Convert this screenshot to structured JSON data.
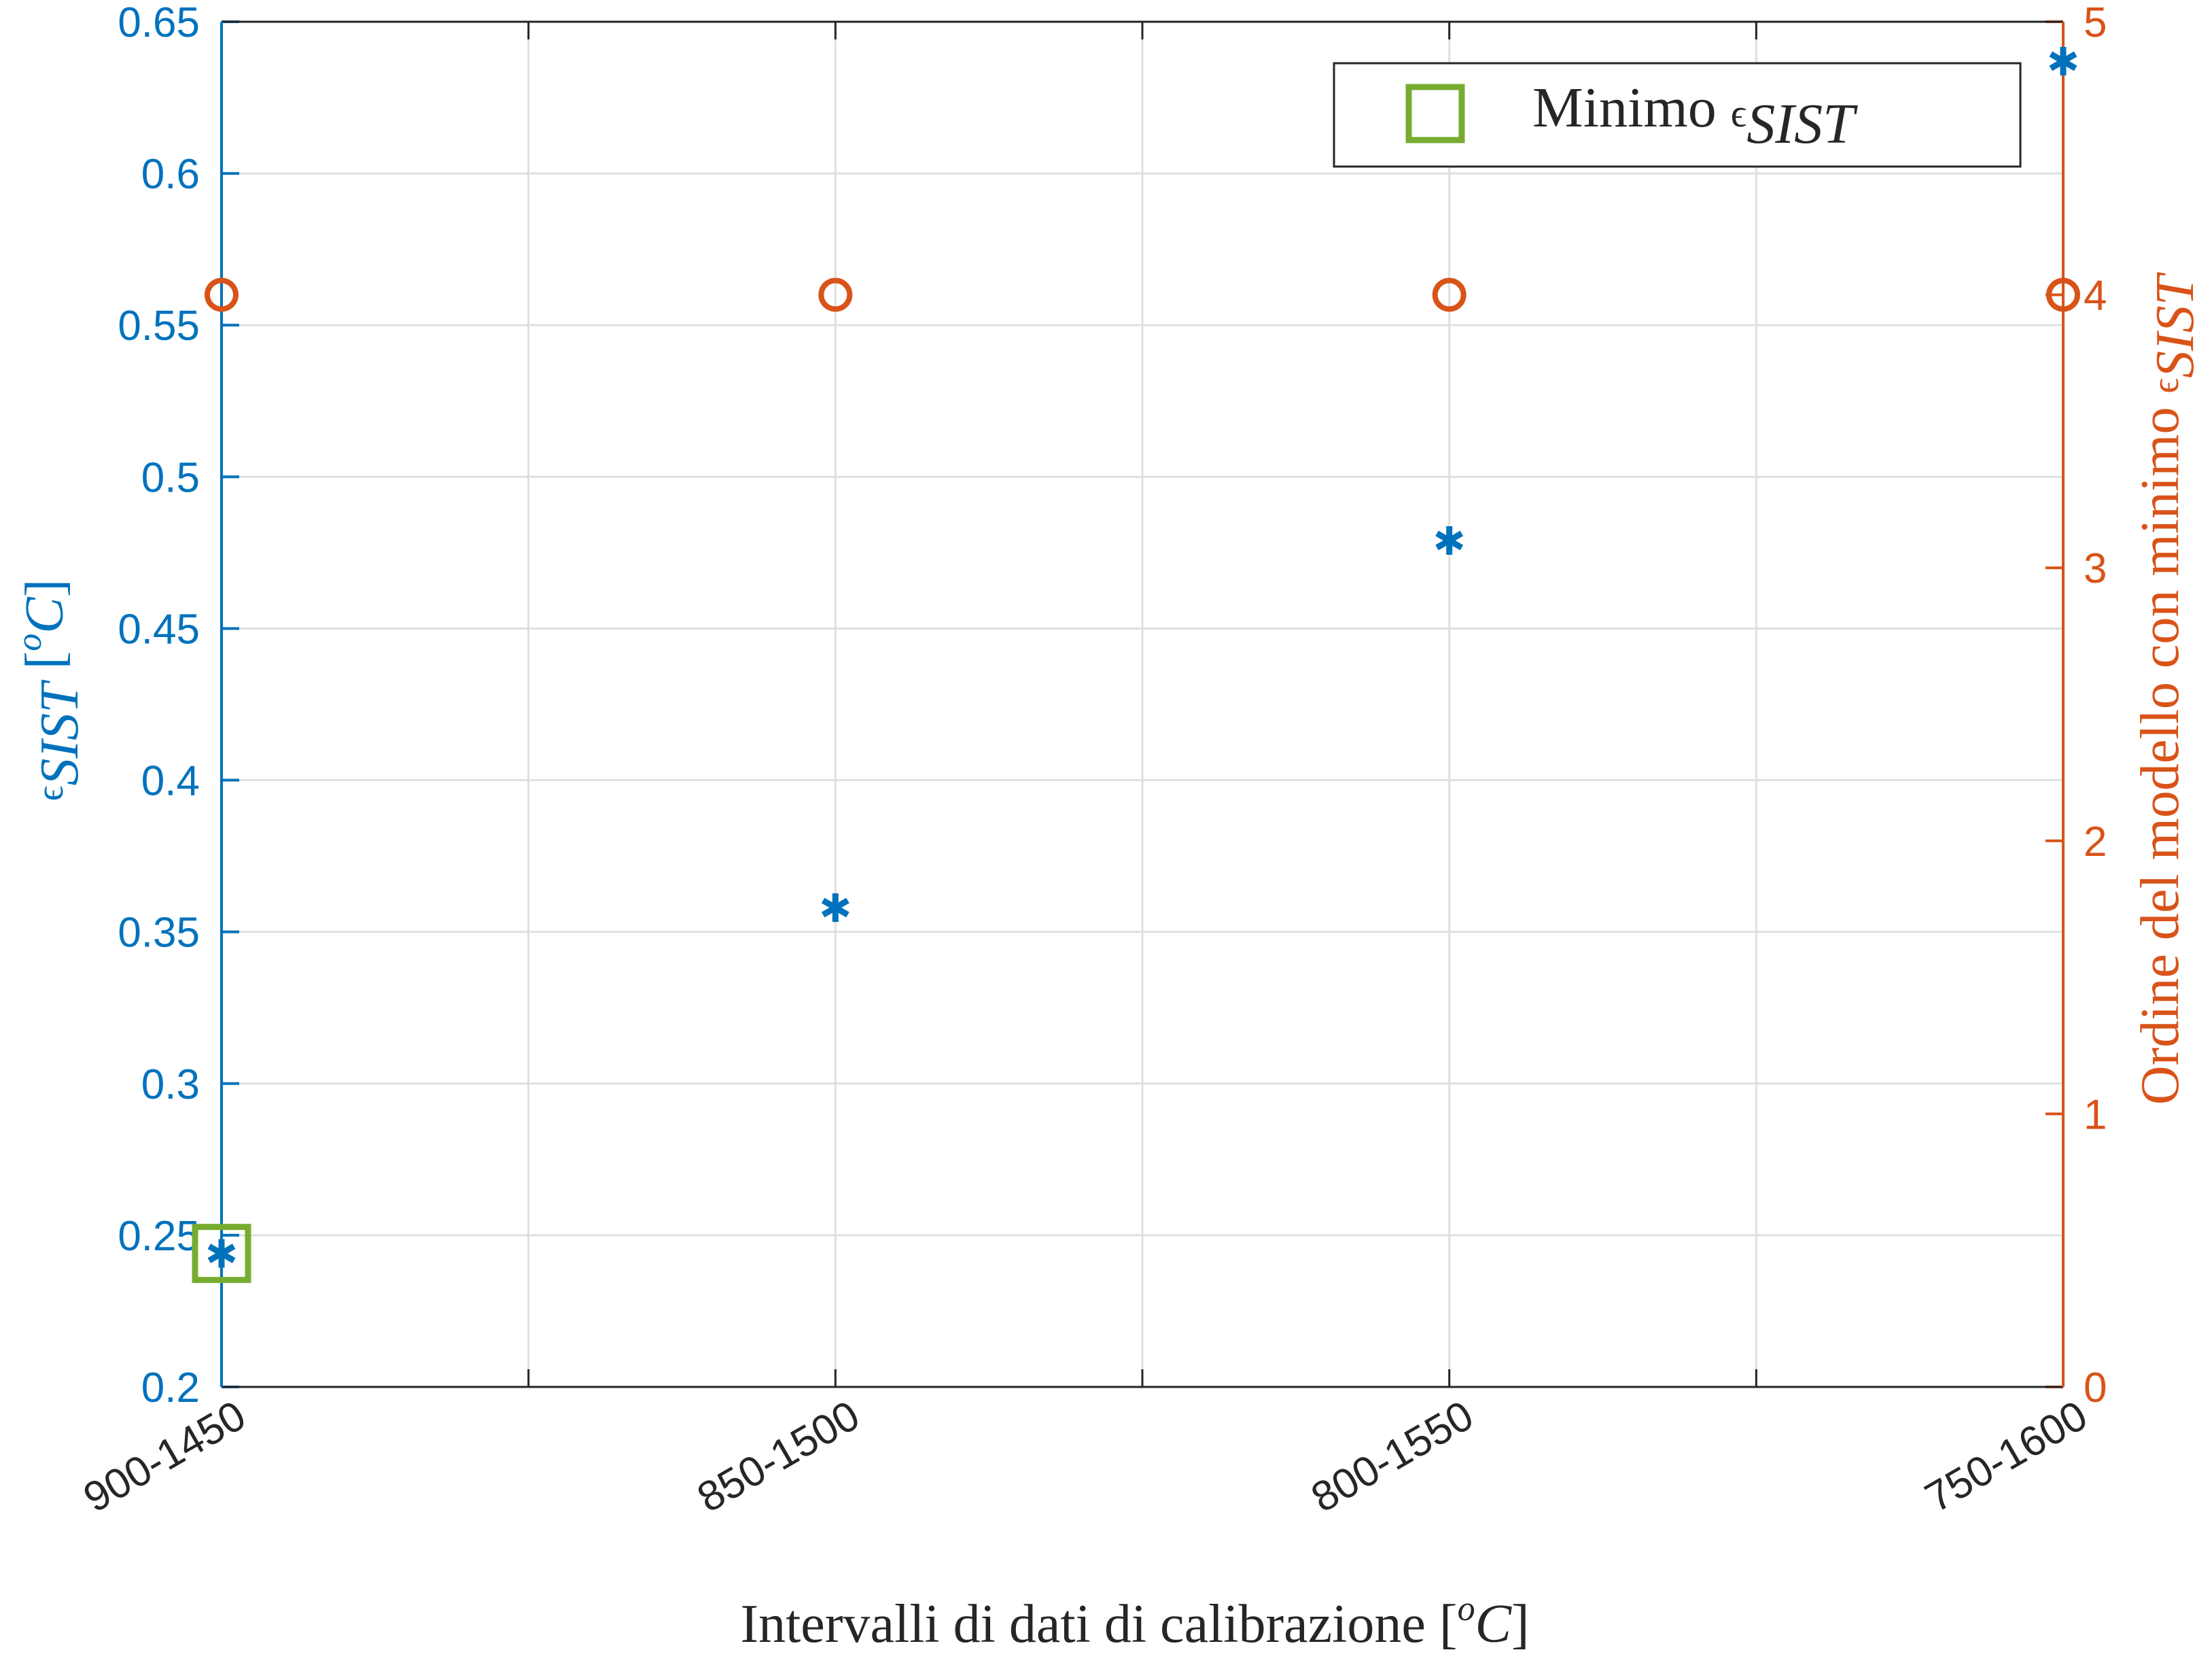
{
  "chart_data": {
    "type": "scatter",
    "xlabel": "Intervalli di dati di calibrazione [",
    "xlabel_sup": "o",
    "xlabel_unit": "C",
    "xlabel_close": "]",
    "ylabel_left": {
      "symbol": "ϵ",
      "subscript": "SIST",
      "open": " [",
      "sup": "o",
      "unit": "C",
      "close": "]"
    },
    "ylabel_right": {
      "text": "Ordine del modello con minimo ",
      "symbol": "ϵ",
      "subscript": "SIST"
    },
    "categories": [
      "900-1450",
      "850-1500",
      "800-1550",
      "750-1600"
    ],
    "x_grid_positions": [
      1,
      1.5,
      2,
      2.5,
      3,
      3.5,
      4
    ],
    "xlim": [
      1,
      4
    ],
    "ylim_left": [
      0.2,
      0.65
    ],
    "yticks_left": [
      "0.2",
      "0.25",
      "0.3",
      "0.35",
      "0.4",
      "0.45",
      "0.5",
      "0.55",
      "0.6",
      "0.65"
    ],
    "ylim_right": [
      0,
      5
    ],
    "yticks_right": [
      "0",
      "1",
      "2",
      "3",
      "4",
      "5"
    ],
    "grid": true,
    "series": [
      {
        "axis": "left",
        "marker": "asterisk",
        "color": "#0072BD",
        "x": [
          1,
          2,
          3,
          4
        ],
        "values": [
          0.244,
          0.358,
          0.479,
          0.637
        ]
      },
      {
        "axis": "right",
        "marker": "circle",
        "color": "#D95319",
        "x": [
          1,
          2,
          3,
          4
        ],
        "values": [
          4,
          4,
          4,
          4
        ]
      },
      {
        "name": "Minimo",
        "name_symbol": "ϵ",
        "name_subscript": "SIST",
        "axis": "left",
        "marker": "square",
        "color": "#77AC30",
        "x": [
          1
        ],
        "values": [
          0.244
        ]
      }
    ],
    "legend_position": "top-right",
    "colors": {
      "left_axis": "#0072BD",
      "right_axis": "#D95319",
      "minimum": "#77AC30",
      "grid": "#DFDFDF",
      "text": "#262626"
    }
  }
}
